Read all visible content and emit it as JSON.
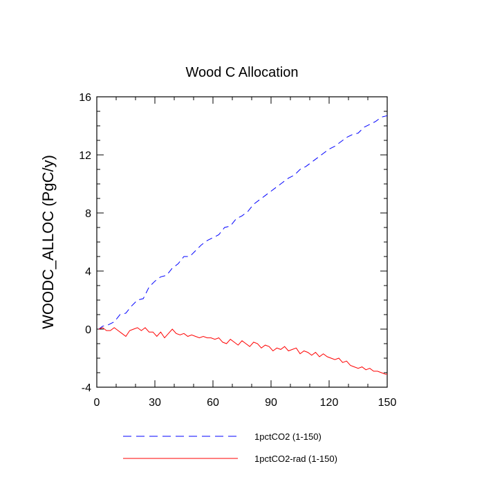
{
  "chart_data": {
    "type": "line",
    "title": "Wood C Allocation",
    "xlabel": "",
    "ylabel": "WOODC_ALLOC  (PgC/y)",
    "xlim": [
      0,
      150
    ],
    "ylim": [
      -4,
      16
    ],
    "xticks": [
      0,
      30,
      60,
      90,
      120,
      150
    ],
    "yticks": [
      -4,
      0,
      4,
      8,
      12,
      16
    ],
    "grid": false,
    "legend_position": "bottom",
    "series": [
      {
        "name": "1pctCO2 (1-150)",
        "color": "#0000ff",
        "style": "dashed",
        "x": [
          1,
          3,
          6,
          9,
          12,
          15,
          18,
          21,
          24,
          27,
          30,
          33,
          36,
          39,
          42,
          45,
          48,
          51,
          54,
          57,
          60,
          63,
          66,
          69,
          72,
          75,
          78,
          81,
          84,
          87,
          90,
          93,
          96,
          99,
          102,
          105,
          108,
          111,
          114,
          117,
          120,
          123,
          126,
          129,
          132,
          135,
          138,
          141,
          144,
          147,
          150
        ],
        "values": [
          0.0,
          0.2,
          0.3,
          0.5,
          1.0,
          1.1,
          1.6,
          2.0,
          2.1,
          2.9,
          3.3,
          3.6,
          3.7,
          4.2,
          4.5,
          5.0,
          5.0,
          5.4,
          5.8,
          6.1,
          6.3,
          6.5,
          7.0,
          7.1,
          7.6,
          7.8,
          8.1,
          8.6,
          8.9,
          9.2,
          9.5,
          9.8,
          10.1,
          10.4,
          10.6,
          11.0,
          11.2,
          11.5,
          11.8,
          12.1,
          12.4,
          12.6,
          12.9,
          13.2,
          13.4,
          13.5,
          13.9,
          14.1,
          14.3,
          14.6,
          14.7
        ]
      },
      {
        "name": "1pctCO2-rad (1-150)",
        "color": "#ff0000",
        "style": "solid",
        "x": [
          1,
          3,
          5,
          7,
          9,
          11,
          13,
          15,
          17,
          19,
          21,
          23,
          25,
          27,
          29,
          31,
          33,
          35,
          37,
          39,
          41,
          43,
          45,
          47,
          49,
          51,
          53,
          55,
          57,
          59,
          61,
          63,
          65,
          67,
          69,
          71,
          73,
          75,
          77,
          79,
          81,
          83,
          85,
          87,
          89,
          91,
          93,
          95,
          97,
          99,
          101,
          103,
          105,
          107,
          109,
          111,
          113,
          115,
          117,
          119,
          121,
          123,
          125,
          127,
          129,
          131,
          133,
          135,
          137,
          139,
          141,
          143,
          145,
          147,
          149,
          150
        ],
        "values": [
          0.0,
          0.1,
          -0.1,
          -0.1,
          0.1,
          -0.1,
          -0.3,
          -0.5,
          -0.1,
          0.0,
          0.1,
          -0.1,
          0.1,
          -0.2,
          -0.2,
          -0.5,
          -0.2,
          -0.6,
          -0.3,
          0.0,
          -0.3,
          -0.4,
          -0.3,
          -0.5,
          -0.4,
          -0.5,
          -0.6,
          -0.5,
          -0.6,
          -0.6,
          -0.7,
          -0.6,
          -0.9,
          -1.0,
          -0.7,
          -0.9,
          -1.1,
          -0.8,
          -1.0,
          -1.2,
          -0.9,
          -1.0,
          -1.3,
          -1.1,
          -1.2,
          -1.5,
          -1.3,
          -1.4,
          -1.2,
          -1.5,
          -1.4,
          -1.3,
          -1.7,
          -1.5,
          -1.6,
          -1.8,
          -1.6,
          -1.9,
          -1.7,
          -1.9,
          -2.0,
          -2.1,
          -2.0,
          -2.3,
          -2.2,
          -2.5,
          -2.6,
          -2.7,
          -2.6,
          -2.8,
          -2.7,
          -2.9,
          -2.9,
          -3.0,
          -3.1,
          -3.1
        ]
      }
    ]
  }
}
